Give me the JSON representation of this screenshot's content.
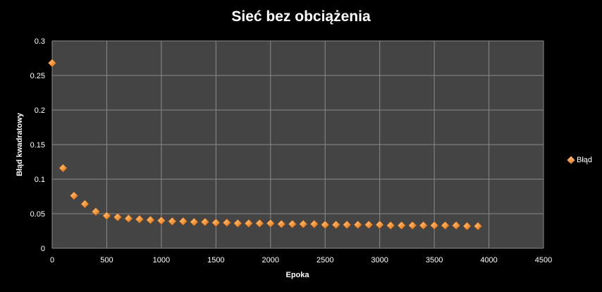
{
  "chart_data": {
    "type": "scatter",
    "title": "Sieć bez obciążenia",
    "xlabel": "Epoka",
    "ylabel": "Błąd kwadratowy",
    "xlim": [
      0,
      4500
    ],
    "ylim": [
      0,
      0.3
    ],
    "x_ticks": [
      "0",
      "500",
      "1000",
      "1500",
      "2000",
      "2500",
      "3000",
      "3500",
      "4000",
      "4500"
    ],
    "y_ticks": [
      "0",
      "0.05",
      "0.1",
      "0.15",
      "0.2",
      "0.25",
      "0.3"
    ],
    "grid": true,
    "legend_position": "right",
    "marker_color": "#f39a40",
    "series": [
      {
        "name": "Błąd",
        "x": [
          0,
          100,
          200,
          300,
          400,
          500,
          600,
          700,
          800,
          900,
          1000,
          1100,
          1200,
          1300,
          1400,
          1500,
          1600,
          1700,
          1800,
          1900,
          2000,
          2100,
          2200,
          2300,
          2400,
          2500,
          2600,
          2700,
          2800,
          2900,
          3000,
          3100,
          3200,
          3300,
          3400,
          3500,
          3600,
          3700,
          3800,
          3900
        ],
        "y": [
          0.268,
          0.116,
          0.076,
          0.064,
          0.053,
          0.047,
          0.045,
          0.043,
          0.042,
          0.041,
          0.04,
          0.039,
          0.039,
          0.038,
          0.038,
          0.037,
          0.037,
          0.036,
          0.036,
          0.036,
          0.036,
          0.035,
          0.035,
          0.035,
          0.035,
          0.034,
          0.034,
          0.034,
          0.034,
          0.034,
          0.034,
          0.033,
          0.033,
          0.033,
          0.033,
          0.033,
          0.033,
          0.033,
          0.032,
          0.032
        ]
      }
    ]
  }
}
